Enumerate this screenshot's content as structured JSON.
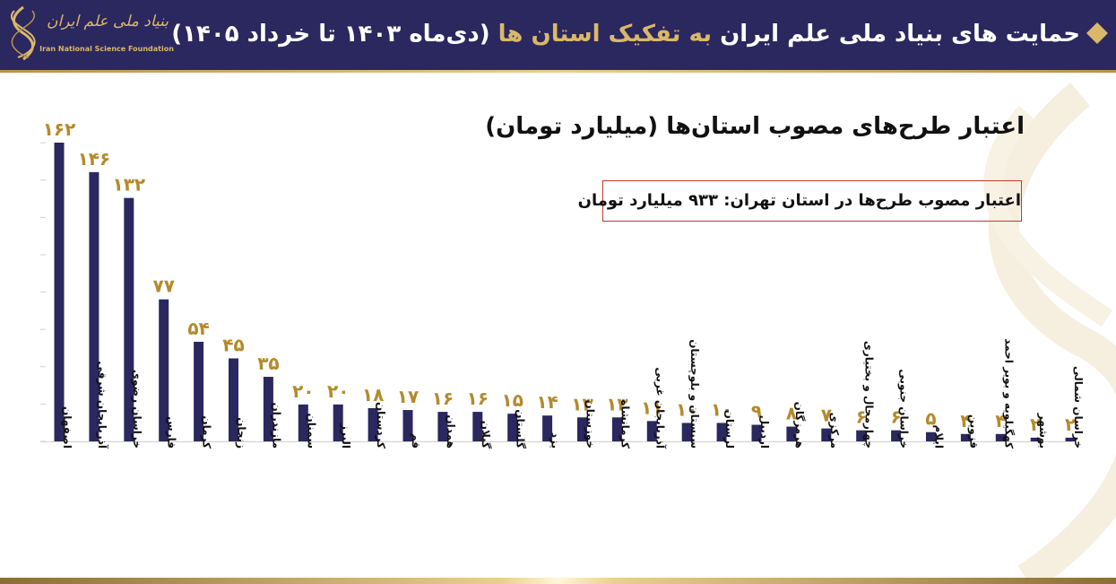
{
  "header": {
    "logo_fa": "بنیاد ملی علم ایران",
    "logo_en": "Iran National Science Foundation",
    "title_part1": "حمایت های بنیاد ملی علم ایران",
    "title_part2": "به تفکیک استان ها",
    "title_part3": "(دی‌ماه ۱۴۰۳ تا خرداد ۱۴۰۵)"
  },
  "colors": {
    "header_bg": "#2b275f",
    "bar": "#2b275f",
    "gold": "#b48a2c",
    "box_border": "#c0392b"
  },
  "tehran_note": "اعتبار مصوب طرح‌ها در استان تهران: ۹۳۳ میلیارد تومان",
  "chart_data": {
    "type": "bar",
    "title": "اعتبار طرح‌های مصوب استان‌ها (میلیارد تومان)",
    "xlabel": "",
    "ylabel": "",
    "ylim": [
      0,
      175
    ],
    "grid": false,
    "categories": [
      "اصفهان",
      "آذربایجان شرقی",
      "خراسان رضوی",
      "فارس",
      "کرمان",
      "زنجان",
      "مازندران",
      "سمنان",
      "البرز",
      "کردستان",
      "قم",
      "همدان",
      "گیلان",
      "گلستان",
      "یزد",
      "خوزستان",
      "کرمانشاه",
      "آذربایجان غربی",
      "سیستان و بلوچستان",
      "لرستان",
      "اردبیل",
      "هرمزگان",
      "مرکزی",
      "چهارمحال و بختیاری",
      "خراسان جنوبی",
      "ایلام",
      "قزوین",
      "کهگیلویه و بویر احمد",
      "بوشهر",
      "خراسان شمالی"
    ],
    "values": [
      162,
      146,
      132,
      77,
      54,
      45,
      35,
      20,
      20,
      18,
      17,
      16,
      16,
      15,
      14,
      13,
      13,
      11,
      10,
      10,
      9,
      8,
      7,
      6,
      6,
      5,
      4,
      4,
      2,
      2
    ],
    "value_labels": [
      "۱۶۲",
      "۱۴۶",
      "۱۳۲",
      "۷۷",
      "۵۴",
      "۴۵",
      "۳۵",
      "۲۰",
      "۲۰",
      "۱۸",
      "۱۷",
      "۱۶",
      "۱۶",
      "۱۵",
      "۱۴",
      "۱۳",
      "۱۳",
      "۱۱",
      "۱۰",
      "۱۰",
      "۹",
      "۸",
      "۷",
      "۶",
      "۶",
      "۵",
      "۴",
      "۴",
      "۲",
      "۲"
    ]
  }
}
